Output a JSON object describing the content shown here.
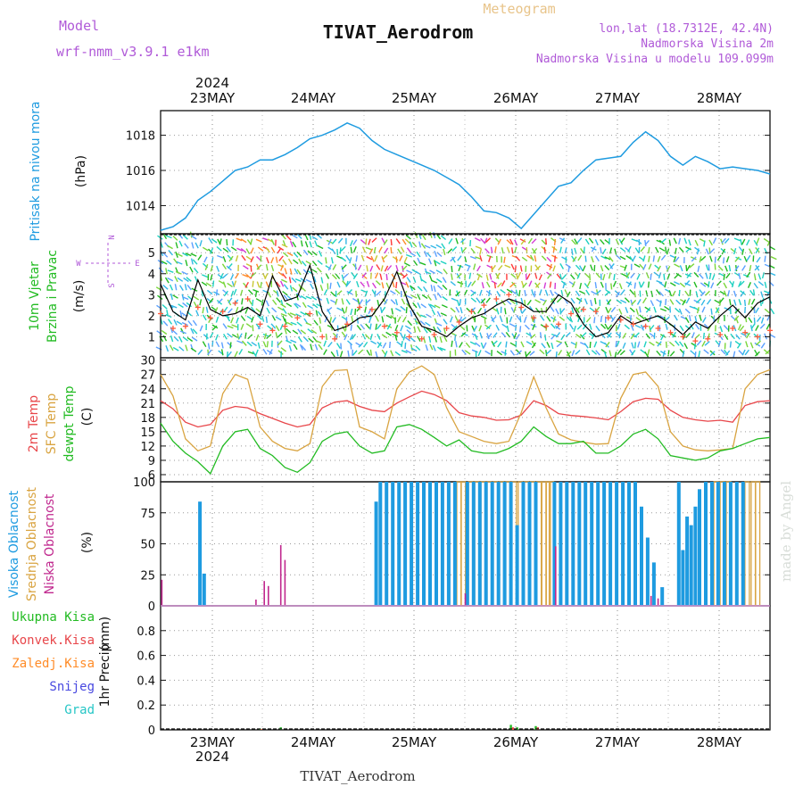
{
  "header": {
    "meteogram_label": "Meteogram",
    "station_title": "TIVAT_Aerodrom",
    "model_label": "Model",
    "model_name": "wrf-nmm_v3.9.1 e1km",
    "lonlat": "lon,lat (18.7312E, 42.4N)",
    "elevation": "Nadmorska Visina 2m",
    "model_elevation": "Nadmorska Visina u modelu 109.099m",
    "footer_station": "TIVAT_Aerodrom",
    "credit": "made by Angel"
  },
  "time_axis": {
    "year": "2024",
    "day_labels": [
      "23MAY",
      "24MAY",
      "25MAY",
      "26MAY",
      "27MAY",
      "28MAY"
    ]
  },
  "colors": {
    "pressure": "#1e9be0",
    "wind_speed": "#000000",
    "gust": "#ff5a3c",
    "temp2m": "#e8464a",
    "sfc_temp": "#d9a441",
    "dewpoint": "#22bb22",
    "high_cloud": "#1e9be0",
    "mid_cloud": "#d9a441",
    "low_cloud": "#c0288e",
    "total_precip": "#22bb22",
    "conv_precip": "#e8464a"
  },
  "chart_data": [
    {
      "type": "line",
      "panel": "pressure",
      "ylabel_main": "Pritisak na nivou mora",
      "ylabel_unit": "(hPa)",
      "yticks": [
        "1014",
        "1016",
        "1018"
      ],
      "ylim": [
        1012.4,
        1019.4
      ],
      "x_hours": [
        0,
        3,
        6,
        9,
        12,
        15,
        18,
        21,
        24,
        27,
        30,
        33,
        36,
        39,
        42,
        45,
        48,
        51,
        54,
        57,
        60,
        63,
        66,
        69,
        72,
        75,
        78,
        81,
        84,
        87,
        90,
        93,
        96,
        99,
        102,
        105,
        108,
        111,
        114,
        117,
        120,
        123,
        126,
        129,
        132,
        135,
        138,
        141,
        144,
        147
      ],
      "series": [
        {
          "values": [
            1012.6,
            1012.8,
            1013.3,
            1014.3,
            1014.8,
            1015.4,
            1016.0,
            1016.2,
            1016.6,
            1016.6,
            1016.9,
            1017.3,
            1017.8,
            1018.0,
            1018.3,
            1018.7,
            1018.4,
            1017.7,
            1017.2,
            1016.9,
            1016.6,
            1016.3,
            1016.0,
            1015.6,
            1015.2,
            1014.5,
            1013.7,
            1013.6,
            1013.3,
            1012.7,
            1013.5,
            1014.3,
            1015.1,
            1015.3,
            1016.0,
            1016.6,
            1016.7,
            1016.8,
            1017.6,
            1018.2,
            1017.7,
            1016.8,
            1016.3,
            1016.8,
            1016.5,
            1016.1,
            1016.2,
            1016.1,
            1016.0,
            1015.8
          ]
        }
      ]
    },
    {
      "type": "line",
      "panel": "wind",
      "ylabel_main": "10m Vjetar",
      "ylabel_sub": "Brzina i Pravac",
      "ylabel_unit": "(m/s)",
      "compass": {
        "n": "N",
        "s": "S",
        "e": "E",
        "w": "W"
      },
      "yticks": [
        "1",
        "2",
        "3",
        "4",
        "5"
      ],
      "ylim": [
        0,
        5.9
      ],
      "x_hours": [
        0,
        3,
        6,
        9,
        12,
        15,
        18,
        21,
        24,
        27,
        30,
        33,
        36,
        39,
        42,
        45,
        48,
        51,
        54,
        57,
        60,
        63,
        66,
        69,
        72,
        75,
        78,
        81,
        84,
        87,
        90,
        93,
        96,
        99,
        102,
        105,
        108,
        111,
        114,
        117,
        120,
        123,
        126,
        129,
        132,
        135,
        138,
        141,
        144,
        147
      ],
      "series": [
        {
          "name": "speed",
          "values": [
            3.5,
            2.2,
            1.8,
            3.7,
            2.3,
            2.0,
            2.1,
            2.4,
            2.0,
            3.9,
            2.7,
            2.9,
            4.4,
            2.2,
            1.3,
            1.5,
            1.9,
            2.0,
            2.8,
            4.1,
            2.5,
            1.5,
            1.3,
            1.0,
            1.5,
            1.9,
            2.1,
            2.5,
            2.8,
            2.6,
            2.2,
            2.2,
            3.0,
            2.6,
            1.6,
            1.0,
            1.2,
            2.0,
            1.6,
            1.8,
            2.0,
            1.6,
            1.1,
            1.7,
            1.4,
            2.0,
            2.5,
            1.9,
            2.6,
            2.9
          ]
        },
        {
          "name": "gust",
          "values": [
            2.1,
            1.4,
            1.5,
            2.4,
            1.9,
            2.2,
            2.6,
            2.8,
            1.6,
            1.3,
            1.5,
            1.9,
            2.1,
            1.0,
            0.9,
            1.6,
            2.4,
            2.3,
            1.5,
            1.2,
            1.0,
            0.9,
            1.1,
            1.4,
            1.7,
            2.2,
            2.5,
            2.8,
            3.0,
            2.4,
            1.9,
            1.5,
            1.6,
            2.1,
            2.3,
            2.2,
            1.9,
            1.8,
            1.6,
            1.5,
            1.4,
            1.2,
            1.0,
            0.8,
            0.9,
            1.1,
            1.4,
            1.2,
            1.0,
            1.3
          ]
        }
      ]
    },
    {
      "type": "line",
      "panel": "temperature",
      "ylabel_main": "2m Temp",
      "ylabel_sub": "SFC Temp",
      "ylabel_third": "dewpt Temp",
      "ylabel_unit": "(C)",
      "yticks": [
        "6",
        "9",
        "12",
        "15",
        "18",
        "21",
        "24",
        "27",
        "30"
      ],
      "ylim": [
        4.5,
        30.5
      ],
      "x_hours": [
        0,
        3,
        6,
        9,
        12,
        15,
        18,
        21,
        24,
        27,
        30,
        33,
        36,
        39,
        42,
        45,
        48,
        51,
        54,
        57,
        60,
        63,
        66,
        69,
        72,
        75,
        78,
        81,
        84,
        87,
        90,
        93,
        96,
        99,
        102,
        105,
        108,
        111,
        114,
        117,
        120,
        123,
        126,
        129,
        132,
        135,
        138,
        141,
        144,
        147
      ],
      "series": [
        {
          "name": "2m Temp",
          "values": [
            21.5,
            19.8,
            17.0,
            16.0,
            16.5,
            19.5,
            20.3,
            20.0,
            18.8,
            17.8,
            16.8,
            16.0,
            16.5,
            20.0,
            21.2,
            21.5,
            20.3,
            19.5,
            19.2,
            21.0,
            22.3,
            23.5,
            22.8,
            21.5,
            19.0,
            18.3,
            18.0,
            17.4,
            17.5,
            18.5,
            21.5,
            20.5,
            18.8,
            18.4,
            18.2,
            17.9,
            17.5,
            19.2,
            21.3,
            22.0,
            21.8,
            19.5,
            18.0,
            17.5,
            17.2,
            17.4,
            17.0,
            20.5,
            21.3,
            21.5
          ]
        },
        {
          "name": "SFC Temp",
          "values": [
            27.0,
            22.5,
            13.5,
            11.0,
            12.0,
            23.0,
            27.0,
            26.0,
            16.0,
            13.0,
            11.5,
            11.0,
            12.5,
            24.5,
            27.8,
            28.0,
            16.0,
            15.0,
            13.5,
            24.0,
            27.5,
            28.8,
            27.0,
            20.0,
            15.0,
            14.0,
            13.0,
            12.5,
            13.0,
            19.0,
            26.5,
            20.0,
            14.5,
            13.3,
            12.8,
            12.4,
            12.5,
            22.0,
            27.0,
            27.5,
            24.5,
            15.0,
            12.0,
            11.2,
            11.0,
            11.2,
            11.5,
            24.0,
            27.0,
            28.0
          ]
        },
        {
          "name": "dewpt Temp",
          "values": [
            16.8,
            13.0,
            10.5,
            8.7,
            6.2,
            12.0,
            15.0,
            15.5,
            11.5,
            10.0,
            7.5,
            6.5,
            8.5,
            13.0,
            14.5,
            15.0,
            12.0,
            10.5,
            11.0,
            16.0,
            16.5,
            15.5,
            13.8,
            12.0,
            13.3,
            11.0,
            10.5,
            10.5,
            11.5,
            13.0,
            16.0,
            14.0,
            12.5,
            12.5,
            13.0,
            10.5,
            10.5,
            12.0,
            14.5,
            15.5,
            13.5,
            10.0,
            9.5,
            9.0,
            9.5,
            11.0,
            11.5,
            12.5,
            13.5,
            13.8
          ]
        }
      ]
    },
    {
      "type": "bar",
      "panel": "clouds",
      "ylabel_main": "Visoka Oblacnost",
      "ylabel_sub": "Srednja Oblacnost",
      "ylabel_third": "Niska Oblacnost",
      "ylabel_unit": "(%)",
      "yticks": [
        "0",
        "25",
        "50",
        "75",
        "100"
      ],
      "ylim": [
        0,
        100
      ],
      "high_cloud": [
        {
          "h": 9.5,
          "v": 84
        },
        {
          "h": 10.5,
          "v": 26
        },
        {
          "h": 52,
          "v": 84
        },
        {
          "h": 53,
          "v": 100
        },
        {
          "h": 54.5,
          "v": 100
        },
        {
          "h": 56,
          "v": 100
        },
        {
          "h": 57.5,
          "v": 100
        },
        {
          "h": 59,
          "v": 100
        },
        {
          "h": 60.5,
          "v": 100
        },
        {
          "h": 62,
          "v": 100
        },
        {
          "h": 63.5,
          "v": 100
        },
        {
          "h": 65,
          "v": 100
        },
        {
          "h": 66.5,
          "v": 100
        },
        {
          "h": 68,
          "v": 100
        },
        {
          "h": 69.5,
          "v": 100
        },
        {
          "h": 71,
          "v": 100
        },
        {
          "h": 74,
          "v": 100
        },
        {
          "h": 75.5,
          "v": 100
        },
        {
          "h": 77,
          "v": 100
        },
        {
          "h": 78.5,
          "v": 100
        },
        {
          "h": 80,
          "v": 100
        },
        {
          "h": 81.5,
          "v": 100
        },
        {
          "h": 83,
          "v": 100
        },
        {
          "h": 84.5,
          "v": 100
        },
        {
          "h": 86,
          "v": 65
        },
        {
          "h": 87.5,
          "v": 100
        },
        {
          "h": 89,
          "v": 100
        },
        {
          "h": 90.5,
          "v": 100
        },
        {
          "h": 95,
          "v": 100
        },
        {
          "h": 96.5,
          "v": 100
        },
        {
          "h": 98,
          "v": 100
        },
        {
          "h": 99.5,
          "v": 100
        },
        {
          "h": 101,
          "v": 100
        },
        {
          "h": 102.5,
          "v": 100
        },
        {
          "h": 104,
          "v": 100
        },
        {
          "h": 105.5,
          "v": 100
        },
        {
          "h": 107,
          "v": 100
        },
        {
          "h": 108.5,
          "v": 100
        },
        {
          "h": 110,
          "v": 100
        },
        {
          "h": 111.5,
          "v": 100
        },
        {
          "h": 113,
          "v": 100
        },
        {
          "h": 114.5,
          "v": 100
        },
        {
          "h": 116,
          "v": 80
        },
        {
          "h": 117.5,
          "v": 55
        },
        {
          "h": 119,
          "v": 35
        },
        {
          "h": 121,
          "v": 15
        },
        {
          "h": 125,
          "v": 100
        },
        {
          "h": 126,
          "v": 45
        },
        {
          "h": 127,
          "v": 72
        },
        {
          "h": 128,
          "v": 65
        },
        {
          "h": 129,
          "v": 80
        },
        {
          "h": 130,
          "v": 94
        },
        {
          "h": 131.5,
          "v": 100
        },
        {
          "h": 133,
          "v": 100
        },
        {
          "h": 134.5,
          "v": 100
        },
        {
          "h": 136,
          "v": 100
        },
        {
          "h": 137.5,
          "v": 100
        },
        {
          "h": 139,
          "v": 100
        },
        {
          "h": 140.5,
          "v": 100
        }
      ],
      "mid_cloud": [
        {
          "h": 72,
          "v": 100
        },
        {
          "h": 73,
          "v": 100
        },
        {
          "h": 74.8,
          "v": 100
        },
        {
          "h": 76.3,
          "v": 100
        },
        {
          "h": 77.8,
          "v": 100
        },
        {
          "h": 79.3,
          "v": 100
        },
        {
          "h": 80.8,
          "v": 100
        },
        {
          "h": 82.3,
          "v": 100
        },
        {
          "h": 83.8,
          "v": 100
        },
        {
          "h": 85.3,
          "v": 100
        },
        {
          "h": 86.8,
          "v": 100
        },
        {
          "h": 88.3,
          "v": 100
        },
        {
          "h": 89.8,
          "v": 100
        },
        {
          "h": 91.3,
          "v": 100
        },
        {
          "h": 92.5,
          "v": 100
        },
        {
          "h": 93.5,
          "v": 100
        },
        {
          "h": 94.3,
          "v": 100
        },
        {
          "h": 134,
          "v": 100
        },
        {
          "h": 135.5,
          "v": 100
        },
        {
          "h": 137,
          "v": 100
        },
        {
          "h": 141.5,
          "v": 100
        },
        {
          "h": 143,
          "v": 100
        },
        {
          "h": 144,
          "v": 100
        }
      ],
      "low_cloud": [
        {
          "h": 0.3,
          "v": 21
        },
        {
          "h": 23,
          "v": 5
        },
        {
          "h": 25,
          "v": 20
        },
        {
          "h": 26,
          "v": 16
        },
        {
          "h": 29,
          "v": 49
        },
        {
          "h": 30,
          "v": 37
        },
        {
          "h": 73.5,
          "v": 10
        },
        {
          "h": 95.3,
          "v": 48
        },
        {
          "h": 118.3,
          "v": 8
        },
        {
          "h": 120,
          "v": 6
        }
      ]
    },
    {
      "type": "bar",
      "panel": "precip",
      "ylabel_main": "1hr Precip",
      "ylabel_unit": "(mm)",
      "legend": [
        "Ukupna Kisa",
        "Konvek.Kisa",
        "Zaledj.Kisa",
        "Snijeg",
        "Grad"
      ],
      "legend_colors": [
        "#22bb22",
        "#e8464a",
        "#ff8c28",
        "#4848e0",
        "#26c6c6"
      ],
      "yticks": [
        "0",
        "0.2",
        "0.4",
        "0.6",
        "0.8"
      ],
      "ylim": [
        0,
        1.0
      ],
      "total": [
        {
          "h": 24,
          "v": 0.01
        },
        {
          "h": 29,
          "v": 0.02
        },
        {
          "h": 84.5,
          "v": 0.04
        },
        {
          "h": 86,
          "v": 0.02
        },
        {
          "h": 90.5,
          "v": 0.03
        }
      ],
      "convective": [
        {
          "h": 24.3,
          "v": 0.005
        },
        {
          "h": 85,
          "v": 0.02
        },
        {
          "h": 91,
          "v": 0.02
        }
      ]
    }
  ]
}
